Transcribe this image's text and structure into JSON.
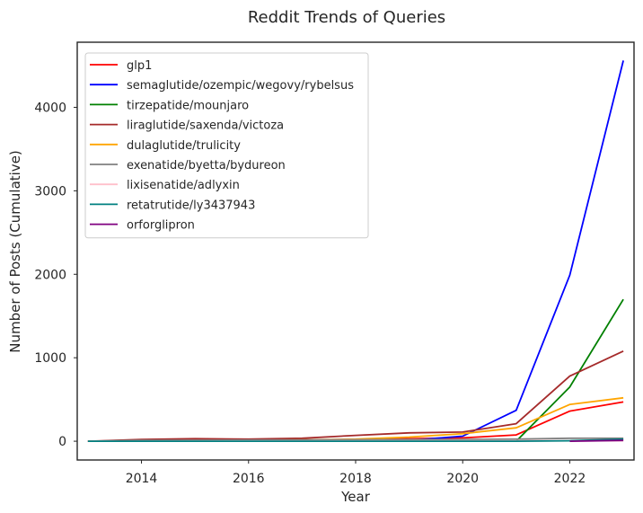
{
  "chart_data": {
    "type": "line",
    "title": "Reddit Trends of Queries",
    "xlabel": "Year",
    "ylabel": "Number of Posts (Cumulative)",
    "xlim": [
      2012.8,
      2023.2
    ],
    "ylim": [
      -225,
      4780
    ],
    "xticks": [
      2014,
      2016,
      2018,
      2020,
      2022
    ],
    "yticks": [
      0,
      1000,
      2000,
      3000,
      4000
    ],
    "grid": false,
    "legend_position": "top-left",
    "series": [
      {
        "name": "glp1",
        "color": "#ff0000",
        "x": [
          2013,
          2014,
          2015,
          2016,
          2017,
          2018,
          2019,
          2020,
          2021,
          2022,
          2023
        ],
        "y": [
          0,
          5,
          10,
          12,
          15,
          20,
          30,
          40,
          75,
          360,
          470
        ]
      },
      {
        "name": "semaglutide/ozempic/wegovy/rybelsus",
        "color": "#0000ff",
        "x": [
          2013,
          2014,
          2015,
          2016,
          2017,
          2018,
          2019,
          2020,
          2021,
          2022,
          2023
        ],
        "y": [
          0,
          0,
          0,
          0,
          0,
          0,
          10,
          60,
          370,
          1990,
          4560
        ]
      },
      {
        "name": "tirzepatide/mounjaro",
        "color": "#008000",
        "x": [
          2021,
          2022,
          2023
        ],
        "y": [
          0,
          650,
          1700
        ]
      },
      {
        "name": "liraglutide/saxenda/victoza",
        "color": "#a52a2a",
        "x": [
          2013,
          2014,
          2015,
          2016,
          2017,
          2018,
          2019,
          2020,
          2021,
          2022,
          2023
        ],
        "y": [
          0,
          20,
          30,
          25,
          35,
          70,
          100,
          110,
          210,
          780,
          1080
        ]
      },
      {
        "name": "dulaglutide/trulicity",
        "color": "#ffa500",
        "x": [
          2013,
          2014,
          2015,
          2016,
          2017,
          2018,
          2019,
          2020,
          2021,
          2022,
          2023
        ],
        "y": [
          0,
          5,
          8,
          10,
          15,
          25,
          50,
          90,
          160,
          440,
          520
        ]
      },
      {
        "name": "exenatide/byetta/bydureon",
        "color": "#808080",
        "x": [
          2013,
          2014,
          2015,
          2016,
          2017,
          2018,
          2019,
          2020,
          2021,
          2022,
          2023
        ],
        "y": [
          0,
          10,
          12,
          14,
          16,
          18,
          20,
          22,
          25,
          35,
          35
        ]
      },
      {
        "name": "lixisenatide/adlyxin",
        "color": "#ffc0cb",
        "x": [
          2013,
          2014,
          2015,
          2016,
          2017,
          2018,
          2019,
          2020,
          2021,
          2022,
          2023
        ],
        "y": [
          0,
          0,
          1,
          2,
          2,
          3,
          3,
          4,
          4,
          5,
          5
        ]
      },
      {
        "name": "retatrutide/ly3437943",
        "color": "#008080",
        "x": [
          2013,
          2014,
          2015,
          2016,
          2017,
          2018,
          2019,
          2020,
          2021,
          2022,
          2023
        ],
        "y": [
          0,
          0,
          0,
          0,
          0,
          0,
          0,
          0,
          0,
          5,
          25
        ]
      },
      {
        "name": "orforglipron",
        "color": "#800080",
        "x": [
          2022,
          2023
        ],
        "y": [
          0,
          10
        ]
      }
    ]
  }
}
